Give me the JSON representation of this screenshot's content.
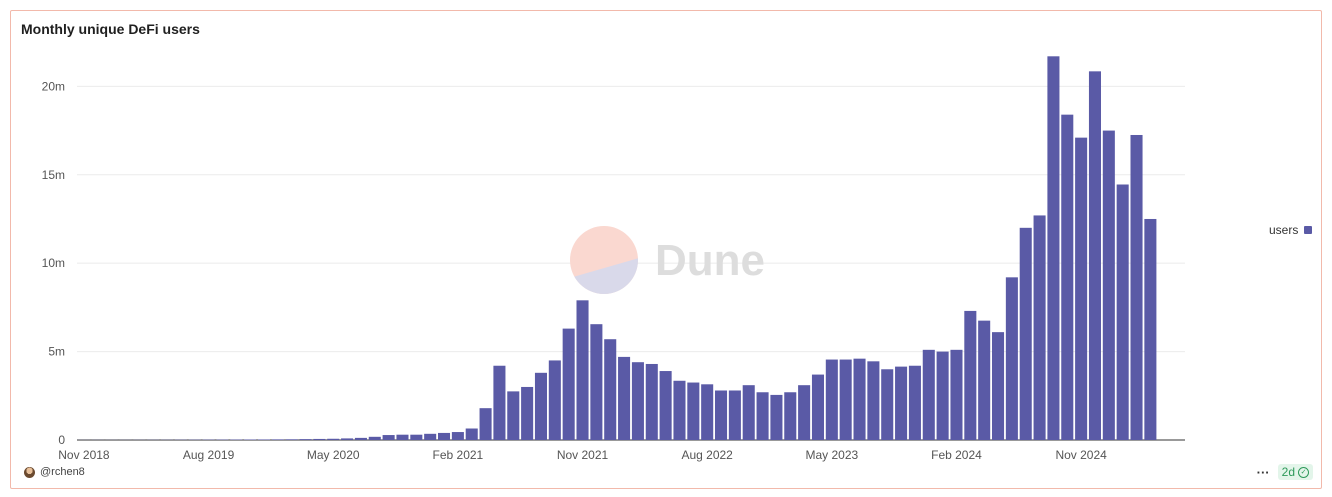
{
  "chart_data": {
    "type": "bar",
    "title": "Monthly unique DeFi users",
    "xlabel": "",
    "ylabel": "",
    "ylim": [
      0,
      22000000
    ],
    "yticks": [
      {
        "value": 0,
        "label": "0"
      },
      {
        "value": 5000000,
        "label": "5m"
      },
      {
        "value": 10000000,
        "label": "10m"
      },
      {
        "value": 15000000,
        "label": "15m"
      },
      {
        "value": 20000000,
        "label": "20m"
      }
    ],
    "xticks": [
      {
        "category": "2018-11",
        "label": "Nov 2018"
      },
      {
        "category": "2019-08",
        "label": "Aug 2019"
      },
      {
        "category": "2020-05",
        "label": "May 2020"
      },
      {
        "category": "2021-02",
        "label": "Feb 2021"
      },
      {
        "category": "2021-11",
        "label": "Nov 2021"
      },
      {
        "category": "2022-08",
        "label": "Aug 2022"
      },
      {
        "category": "2023-05",
        "label": "May 2023"
      },
      {
        "category": "2024-02",
        "label": "Feb 2024"
      },
      {
        "category": "2024-11",
        "label": "Nov 2024"
      }
    ],
    "grid": true,
    "legend_position": "right",
    "categories": [
      "2018-11",
      "2018-12",
      "2019-01",
      "2019-02",
      "2019-03",
      "2019-04",
      "2019-05",
      "2019-06",
      "2019-07",
      "2019-08",
      "2019-09",
      "2019-10",
      "2019-11",
      "2019-12",
      "2020-01",
      "2020-02",
      "2020-03",
      "2020-04",
      "2020-05",
      "2020-06",
      "2020-07",
      "2020-08",
      "2020-09",
      "2020-10",
      "2020-11",
      "2020-12",
      "2021-01",
      "2021-02",
      "2021-03",
      "2021-04",
      "2021-05",
      "2021-06",
      "2021-07",
      "2021-08",
      "2021-09",
      "2021-10",
      "2021-11",
      "2021-12",
      "2022-01",
      "2022-02",
      "2022-03",
      "2022-04",
      "2022-05",
      "2022-06",
      "2022-07",
      "2022-08",
      "2022-09",
      "2022-10",
      "2022-11",
      "2022-12",
      "2023-01",
      "2023-02",
      "2023-03",
      "2023-04",
      "2023-05",
      "2023-06",
      "2023-07",
      "2023-08",
      "2023-09",
      "2023-10",
      "2023-11",
      "2023-12",
      "2024-01",
      "2024-02",
      "2024-03",
      "2024-04",
      "2024-05",
      "2024-06",
      "2024-07",
      "2024-08",
      "2024-09",
      "2024-10",
      "2024-11",
      "2024-12",
      "2025-01",
      "2025-02",
      "2025-03",
      "2025-04",
      "2025-05",
      "2025-06"
    ],
    "series": [
      {
        "name": "users",
        "color": "#5a5aa6",
        "values": [
          5000,
          6000,
          7000,
          8000,
          9000,
          10000,
          12000,
          15000,
          18000,
          20000,
          22000,
          25000,
          28000,
          30000,
          35000,
          40000,
          50000,
          60000,
          70000,
          90000,
          120000,
          180000,
          280000,
          300000,
          300000,
          350000,
          400000,
          450000,
          650000,
          1800000,
          4200000,
          2750000,
          3000000,
          3800000,
          4500000,
          6300000,
          7900000,
          6550000,
          5700000,
          4700000,
          4400000,
          4300000,
          3900000,
          3350000,
          3250000,
          3150000,
          2800000,
          2800000,
          3100000,
          2700000,
          2550000,
          2700000,
          3100000,
          3700000,
          4550000,
          4550000,
          4600000,
          4450000,
          4000000,
          4150000,
          4200000,
          5100000,
          5000000,
          5100000,
          7300000,
          6750000,
          6100000,
          9200000,
          12000000,
          12700000,
          21700000,
          18400000,
          17100000,
          20850000,
          17500000,
          14450000,
          17250000,
          12500000,
          0,
          0
        ]
      }
    ]
  },
  "watermark": {
    "text": "Dune"
  },
  "legend": {
    "label": "users",
    "color": "#5a5aa6"
  },
  "footer": {
    "author": "@rchen8",
    "age": "2d",
    "more_icon": "ellipsis-icon",
    "check_icon": "check-circle-icon"
  }
}
